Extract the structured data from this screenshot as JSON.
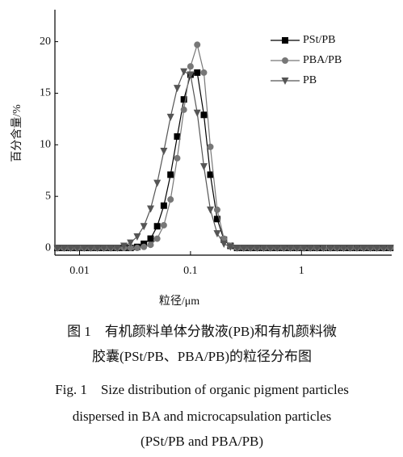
{
  "chart_data": {
    "type": "line",
    "xscale": "log",
    "xlabel": "粒径/μm",
    "ylabel": "百分含量/%",
    "xlim": [
      0.006,
      6.5
    ],
    "xticks": [
      0.01,
      0.1,
      1
    ],
    "ylim": [
      -0.7,
      23.1
    ],
    "yticks": [
      0,
      5,
      10,
      15,
      20
    ],
    "legend": "upper right",
    "x": [
      0.00631,
      0.00724,
      0.00832,
      0.00955,
      0.011,
      0.0126,
      0.0145,
      0.0166,
      0.0191,
      0.0219,
      0.0251,
      0.0288,
      0.0331,
      0.038,
      0.0437,
      0.0501,
      0.0575,
      0.0661,
      0.0759,
      0.0871,
      0.1,
      0.115,
      0.132,
      0.151,
      0.174,
      0.2,
      0.229,
      0.263,
      0.302,
      0.347,
      0.398,
      0.457,
      0.525,
      0.603,
      0.692,
      0.794,
      0.912,
      1.05,
      1.2,
      1.38,
      1.58,
      1.82,
      2.09,
      2.4,
      2.75,
      3.16,
      3.63,
      4.17,
      4.79,
      5.5,
      6.31
    ],
    "series": [
      {
        "name": "PSt/PB",
        "color": "#000000",
        "marker": "square",
        "values": [
          0,
          0,
          0,
          0,
          0,
          0,
          0,
          0,
          0,
          0,
          0,
          0,
          0.1,
          0.4,
          0.9,
          2.1,
          4.1,
          7.1,
          10.8,
          14.4,
          16.8,
          17.0,
          12.9,
          7.1,
          2.8,
          0.8,
          0.2,
          0,
          0,
          0,
          0,
          0,
          0,
          0,
          0,
          0,
          0,
          0,
          0,
          0,
          0,
          0,
          0,
          0,
          0,
          0,
          0,
          0,
          0,
          0,
          0
        ]
      },
      {
        "name": "PBA/PB",
        "color": "#777777",
        "marker": "circle",
        "values": [
          0,
          0,
          0,
          0,
          0,
          0,
          0,
          0,
          0,
          0,
          0,
          0,
          0,
          0.1,
          0.3,
          0.9,
          2.2,
          4.7,
          8.7,
          13.4,
          17.6,
          19.7,
          17.0,
          9.8,
          3.7,
          0.9,
          0.2,
          0,
          0,
          0,
          0,
          0,
          0,
          0,
          0,
          0,
          0,
          0,
          0,
          0,
          0,
          0,
          0,
          0,
          0,
          0,
          0,
          0,
          0,
          0,
          0
        ]
      },
      {
        "name": "PB",
        "color": "#555555",
        "marker": "triangle-down",
        "values": [
          0,
          0,
          0,
          0,
          0,
          0,
          0,
          0,
          0,
          0,
          0.2,
          0.5,
          1.1,
          2.1,
          3.8,
          6.3,
          9.4,
          12.7,
          15.5,
          17.1,
          16.8,
          13.1,
          7.9,
          3.7,
          1.4,
          0.4,
          0.1,
          0,
          0,
          0,
          0,
          0,
          0,
          0,
          0,
          0,
          0,
          0,
          0,
          0,
          0,
          0,
          0,
          0,
          0,
          0,
          0,
          0,
          0,
          0,
          0
        ]
      }
    ]
  },
  "caption_lines": [
    "图 1　有机颜料单体分散液(PB)和有机颜料微",
    "胶囊(PSt/PB、PBA/PB)的粒径分布图",
    "Fig. 1　Size distribution of organic pigment particles",
    "dispersed in BA and microcapsulation particles",
    "(PSt/PB and PBA/PB)"
  ]
}
